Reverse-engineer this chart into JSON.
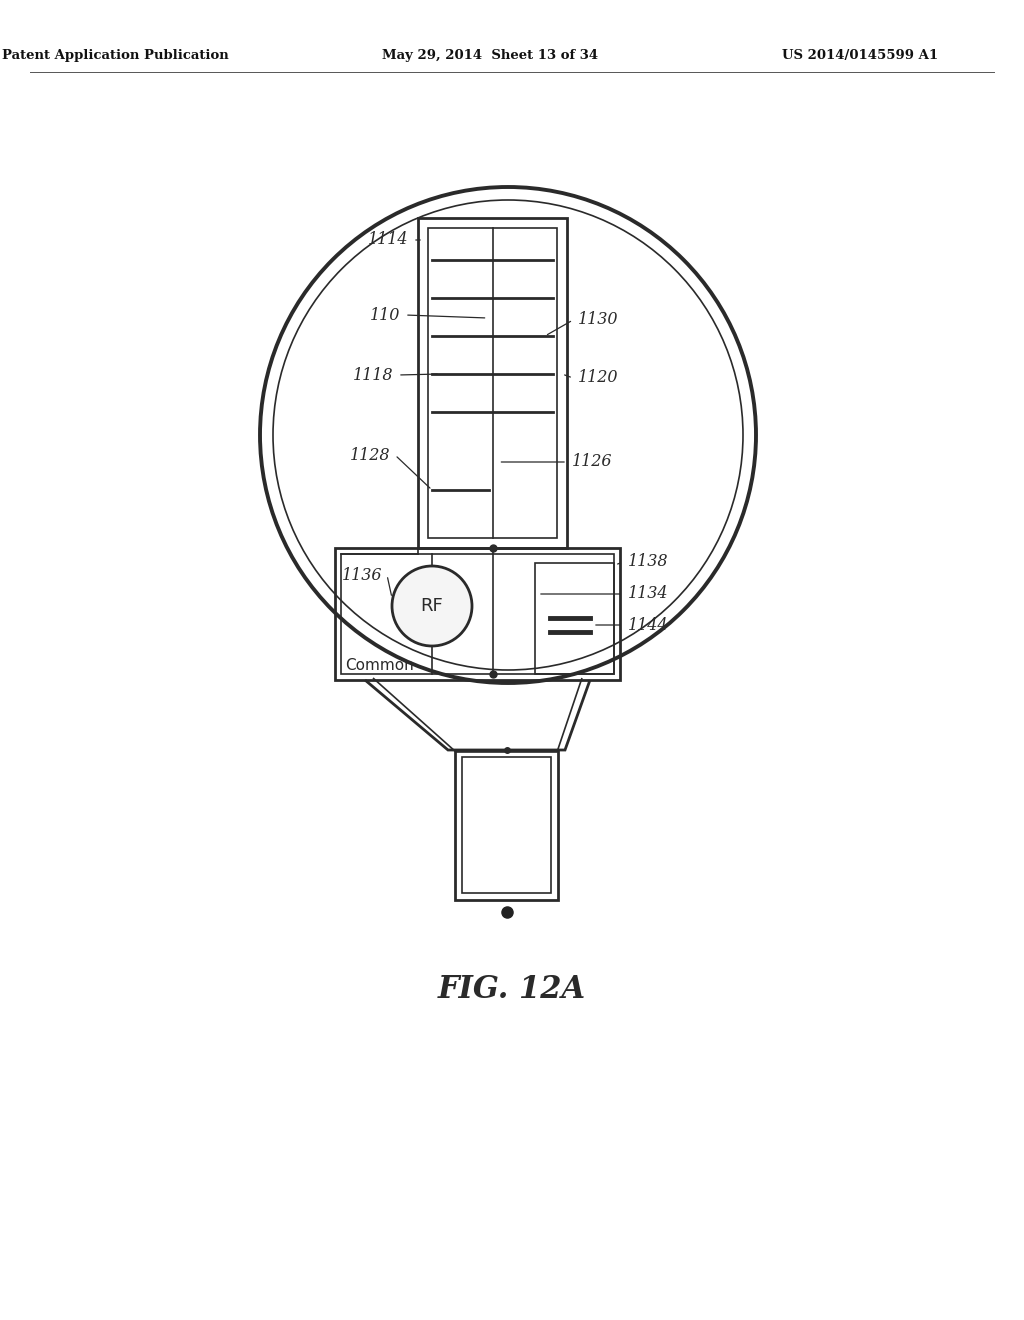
{
  "header_left": "Patent Application Publication",
  "header_center": "May 29, 2014  Sheet 13 of 34",
  "header_right": "US 2014/0145599 A1",
  "bg_color": "#ffffff",
  "line_color": "#2a2a2a",
  "fig_label": "FIG. 12A"
}
